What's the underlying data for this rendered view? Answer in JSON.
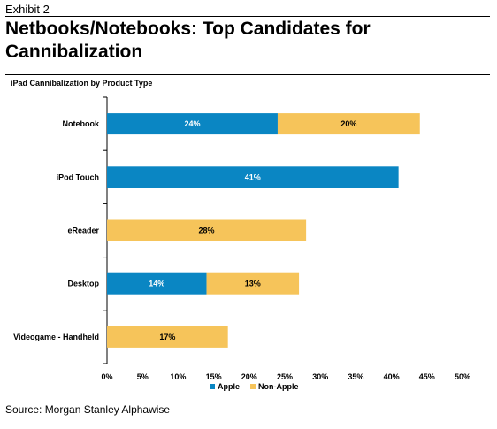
{
  "header": {
    "exhibit": "Exhibit 2",
    "title": "Netbooks/Notebooks: Top Candidates for Cannibalization"
  },
  "footer": {
    "source": "Source: Morgan Stanley Alphawise"
  },
  "colors": {
    "apple": "#0a86c3",
    "non_apple": "#f6c45a"
  },
  "chart_data": {
    "type": "bar",
    "orientation": "horizontal",
    "stacked": true,
    "title": "iPad Cannibalization by Product Type",
    "categories": [
      "Notebook",
      "iPod Touch",
      "eReader",
      "Desktop",
      "Videogame - Handheld"
    ],
    "series": [
      {
        "name": "Apple",
        "values": [
          24,
          41,
          0,
          14,
          0
        ]
      },
      {
        "name": "Non-Apple",
        "values": [
          20,
          0,
          28,
          13,
          17
        ]
      }
    ],
    "xlim": [
      0,
      50
    ],
    "xticks": [
      "0%",
      "5%",
      "10%",
      "15%",
      "20%",
      "25%",
      "30%",
      "35%",
      "40%",
      "45%",
      "50%"
    ],
    "value_unit": "%",
    "legend": "bottom-center",
    "grid": false
  }
}
